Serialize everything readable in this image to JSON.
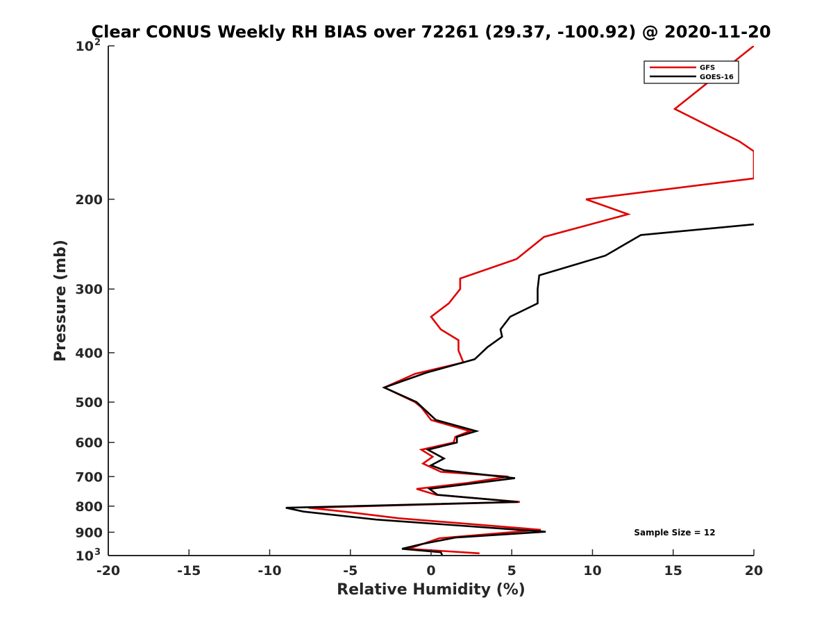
{
  "chart_data": {
    "type": "line",
    "title": "Clear CONUS Weekly RH BIAS over 72261 (29.37, -100.92) @ 2020-11-20",
    "xlabel": "Relative Humidity (%)",
    "ylabel": "Pressure (mb)",
    "xlim": [
      -20,
      20
    ],
    "ylim": [
      100,
      1000
    ],
    "y_scale": "log",
    "y_reversed": true,
    "x_ticks": [
      "-20",
      "-15",
      "-10",
      "-5",
      "0",
      "5",
      "10",
      "15",
      "20"
    ],
    "y_ticks": [
      {
        "value": 100,
        "label": "10",
        "sup": "2"
      },
      {
        "value": 200,
        "label": "200",
        "sup": ""
      },
      {
        "value": 300,
        "label": "300",
        "sup": ""
      },
      {
        "value": 400,
        "label": "400",
        "sup": ""
      },
      {
        "value": 500,
        "label": "500",
        "sup": ""
      },
      {
        "value": 600,
        "label": "600",
        "sup": ""
      },
      {
        "value": 700,
        "label": "700",
        "sup": ""
      },
      {
        "value": 800,
        "label": "800",
        "sup": ""
      },
      {
        "value": 900,
        "label": "900",
        "sup": ""
      },
      {
        "value": 1000,
        "label": "10",
        "sup": "3"
      }
    ],
    "legend_position": "top-right",
    "annotation": "Sample Size = 12",
    "series": [
      {
        "name": "GFS",
        "color": "#e00000",
        "points": [
          [
            20,
            100
          ],
          [
            15.1,
            133
          ],
          [
            19.1,
            154
          ],
          [
            20,
            161
          ],
          [
            20,
            182
          ],
          [
            9.6,
            200
          ],
          [
            12.2,
            214
          ],
          [
            7,
            237
          ],
          [
            5.3,
            262
          ],
          [
            1.8,
            286
          ],
          [
            1.8,
            300
          ],
          [
            1.1,
            320
          ],
          [
            0,
            340
          ],
          [
            0.6,
            360
          ],
          [
            1.7,
            378
          ],
          [
            1.7,
            396
          ],
          [
            2.0,
            418
          ],
          [
            -1.0,
            440
          ],
          [
            -2.9,
            468
          ],
          [
            -1.0,
            500
          ],
          [
            -0.6,
            512
          ],
          [
            0,
            542
          ],
          [
            2.4,
            570
          ],
          [
            1.5,
            585
          ],
          [
            1.4,
            600
          ],
          [
            -0.6,
            620
          ],
          [
            0.1,
            640
          ],
          [
            -0.5,
            660
          ],
          [
            0.6,
            685
          ],
          [
            4.8,
            700
          ],
          [
            2.3,
            720
          ],
          [
            -0.9,
            740
          ],
          [
            0.3,
            760
          ],
          [
            5.5,
            785
          ],
          [
            -7.6,
            806
          ],
          [
            -5.4,
            820
          ],
          [
            -2.0,
            845
          ],
          [
            6.8,
            890
          ],
          [
            0.5,
            925
          ],
          [
            -1.4,
            970
          ],
          [
            3.0,
            990
          ]
        ]
      },
      {
        "name": "GOES-16",
        "color": "#000000",
        "points": [
          [
            20,
            224
          ],
          [
            13.0,
            235
          ],
          [
            10.8,
            258
          ],
          [
            6.7,
            282
          ],
          [
            6.6,
            300
          ],
          [
            6.6,
            320
          ],
          [
            4.9,
            340
          ],
          [
            4.3,
            360
          ],
          [
            4.4,
            372
          ],
          [
            3.5,
            390
          ],
          [
            2.7,
            412
          ],
          [
            -0.3,
            438
          ],
          [
            -2.9,
            468
          ],
          [
            -0.9,
            500
          ],
          [
            0.3,
            542
          ],
          [
            2.8,
            570
          ],
          [
            1.6,
            585
          ],
          [
            1.6,
            600
          ],
          [
            -0.2,
            620
          ],
          [
            0.8,
            645
          ],
          [
            0,
            665
          ],
          [
            0.8,
            680
          ],
          [
            5.2,
            705
          ],
          [
            -0.1,
            740
          ],
          [
            0.4,
            760
          ],
          [
            5.4,
            785
          ],
          [
            -9.0,
            806
          ],
          [
            -7.9,
            820
          ],
          [
            -3.4,
            850
          ],
          [
            7.1,
            898
          ],
          [
            1.5,
            922
          ],
          [
            -0.6,
            950
          ],
          [
            -1.8,
            970
          ],
          [
            0.6,
            985
          ],
          [
            0.7,
            1000
          ]
        ]
      }
    ]
  }
}
